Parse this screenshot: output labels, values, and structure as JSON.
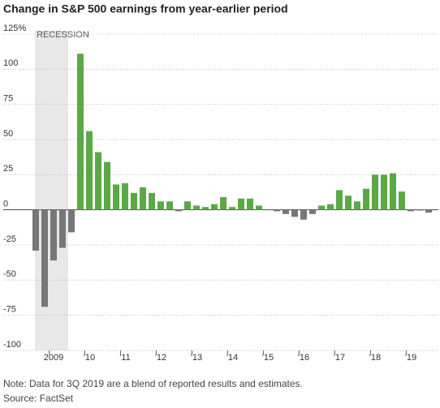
{
  "chart_data": {
    "type": "bar",
    "title": "Change in S&P 500 earnings from year-earlier period",
    "annotation": "RECESSION",
    "note": "Note: Data for 3Q 2019 are a blend of reported results and estimates.",
    "source": "Source: FactSet",
    "categories": [
      null,
      null,
      "2009",
      null,
      null,
      null,
      "'10",
      null,
      null,
      null,
      "'11",
      null,
      null,
      null,
      "'12",
      null,
      null,
      null,
      "'13",
      null,
      null,
      null,
      "'14",
      null,
      null,
      null,
      "'15",
      null,
      null,
      null,
      "'16",
      null,
      null,
      null,
      "'17",
      null,
      null,
      null,
      "'18",
      null,
      null,
      null,
      "'19",
      null,
      null
    ],
    "values": [
      -29,
      -69,
      -36,
      -27,
      -16,
      111,
      56,
      41,
      34,
      18,
      19,
      12,
      16,
      12,
      6,
      6,
      -1,
      6,
      3,
      2,
      4,
      9,
      2,
      8,
      8,
      3,
      0,
      -1,
      -3,
      -5,
      -7,
      -3,
      3,
      4,
      14,
      10,
      6,
      15,
      25,
      25,
      26,
      13,
      -1,
      -0.5,
      -2
    ],
    "color_positive": "#5aa846",
    "color_negative": "#777777",
    "ylim": [
      -100,
      125
    ],
    "yticks": [
      {
        "value": 125,
        "label": "125%"
      },
      100,
      75,
      50,
      25,
      0,
      -25,
      -50,
      -75,
      -100
    ],
    "grid": true
  }
}
